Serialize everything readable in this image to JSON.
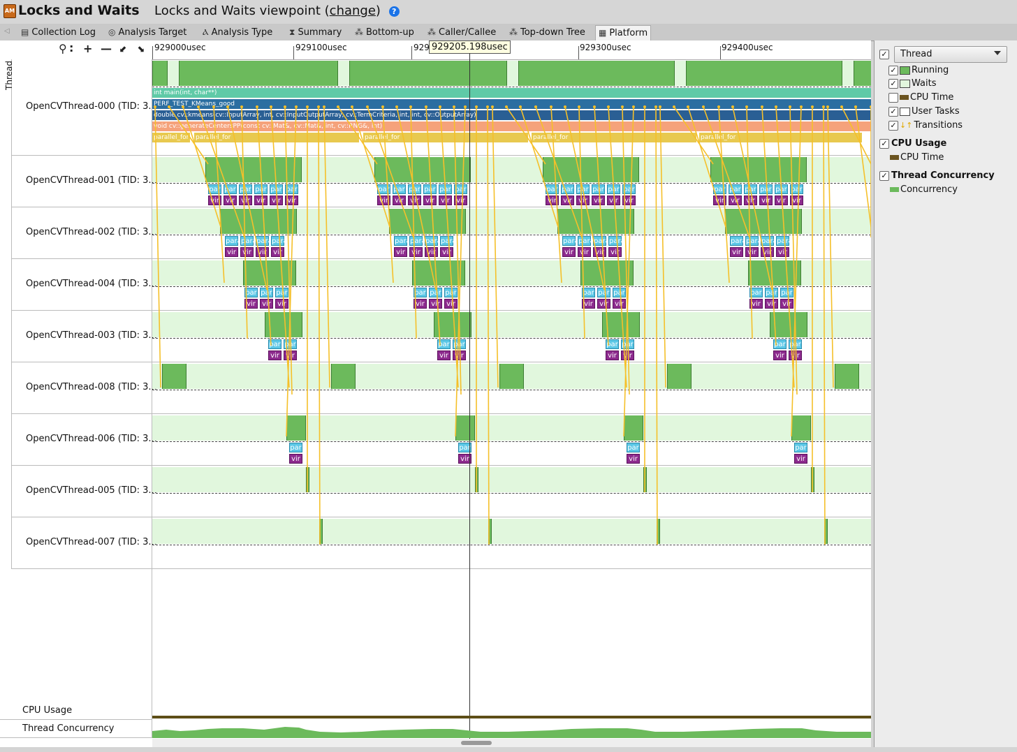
{
  "titlebar": {
    "title": "Locks and Waits",
    "viewpoint_prefix": "Locks and Waits viewpoint (",
    "change_link": "change",
    "viewpoint_suffix": ")",
    "help": "?",
    "app_icon": "AM"
  },
  "tabs": [
    {
      "label": "Collection Log",
      "icon": "collection-log-icon",
      "glyph": "▤"
    },
    {
      "label": "Analysis Target",
      "icon": "analysis-target-icon",
      "glyph": "◎"
    },
    {
      "label": "Analysis Type",
      "icon": "analysis-type-icon",
      "glyph": "Ⲁ"
    },
    {
      "label": "Summary",
      "icon": "summary-icon",
      "glyph": "⧗"
    },
    {
      "label": "Bottom-up",
      "icon": "bottom-up-icon",
      "glyph": "⁂"
    },
    {
      "label": "Caller/Callee",
      "icon": "caller-callee-icon",
      "glyph": "⁂"
    },
    {
      "label": "Top-down Tree",
      "icon": "top-down-tree-icon",
      "glyph": "⁂"
    },
    {
      "label": "Platform",
      "icon": "platform-icon",
      "glyph": "▦"
    }
  ],
  "side_label": "Thread",
  "ruler": {
    "ticks": [
      "929000usec",
      "929100usec",
      "929",
      "929300usec",
      "929400usec"
    ],
    "cursor": "929205.198usec"
  },
  "threads": [
    {
      "name": "OpenCVThread-000 (TID: 3..."
    },
    {
      "name": "OpenCVThread-001 (TID: 3..."
    },
    {
      "name": "OpenCVThread-002 (TID: 3..."
    },
    {
      "name": "OpenCVThread-004 (TID: 3..."
    },
    {
      "name": "OpenCVThread-003 (TID: 3..."
    },
    {
      "name": "OpenCVThread-008 (TID: 3..."
    },
    {
      "name": "OpenCVThread-006 (TID: 3..."
    },
    {
      "name": "OpenCVThread-005 (TID: 3..."
    },
    {
      "name": "OpenCVThread-007 (TID: 3..."
    }
  ],
  "frames": {
    "main": "int main(int, char**)",
    "perf": "PERF_TEST_KMeans_good",
    "kmeans": "double cv::kmeans(cv::InputArray, int, cv::InputOutputArray, cv::TermCriteria, int, int, cv::OutputArray)",
    "gen": "void cv::generateCentersPP(const cv::Mat&, cv::Mat&, int, cv::RNG&, int)",
    "parallel_for": "parallel_for",
    "par_short": "par",
    "para_short": "para",
    "vir_short": "vir"
  },
  "bottom": {
    "cpu_usage": "CPU Usage",
    "thread_concurrency": "Thread Concurrency"
  },
  "legend": {
    "dropdown": "Thread",
    "items": [
      {
        "label": "Running",
        "checked": true,
        "color": "#6cba5c"
      },
      {
        "label": "Waits",
        "checked": true,
        "color": "#e1f7dd"
      },
      {
        "label": "CPU Time",
        "checked": false,
        "color": "#6b5420"
      },
      {
        "label": "User Tasks",
        "checked": true,
        "color": "#ffffff"
      },
      {
        "label": "Transitions",
        "checked": true,
        "color": "#f5c02a"
      }
    ],
    "cpu_group": "CPU Usage",
    "cpu_item": "CPU Time",
    "conc_group": "Thread Concurrency",
    "conc_item": "Concurrency"
  },
  "check_mark": "✓",
  "tab_scroll_glyph": "◁"
}
